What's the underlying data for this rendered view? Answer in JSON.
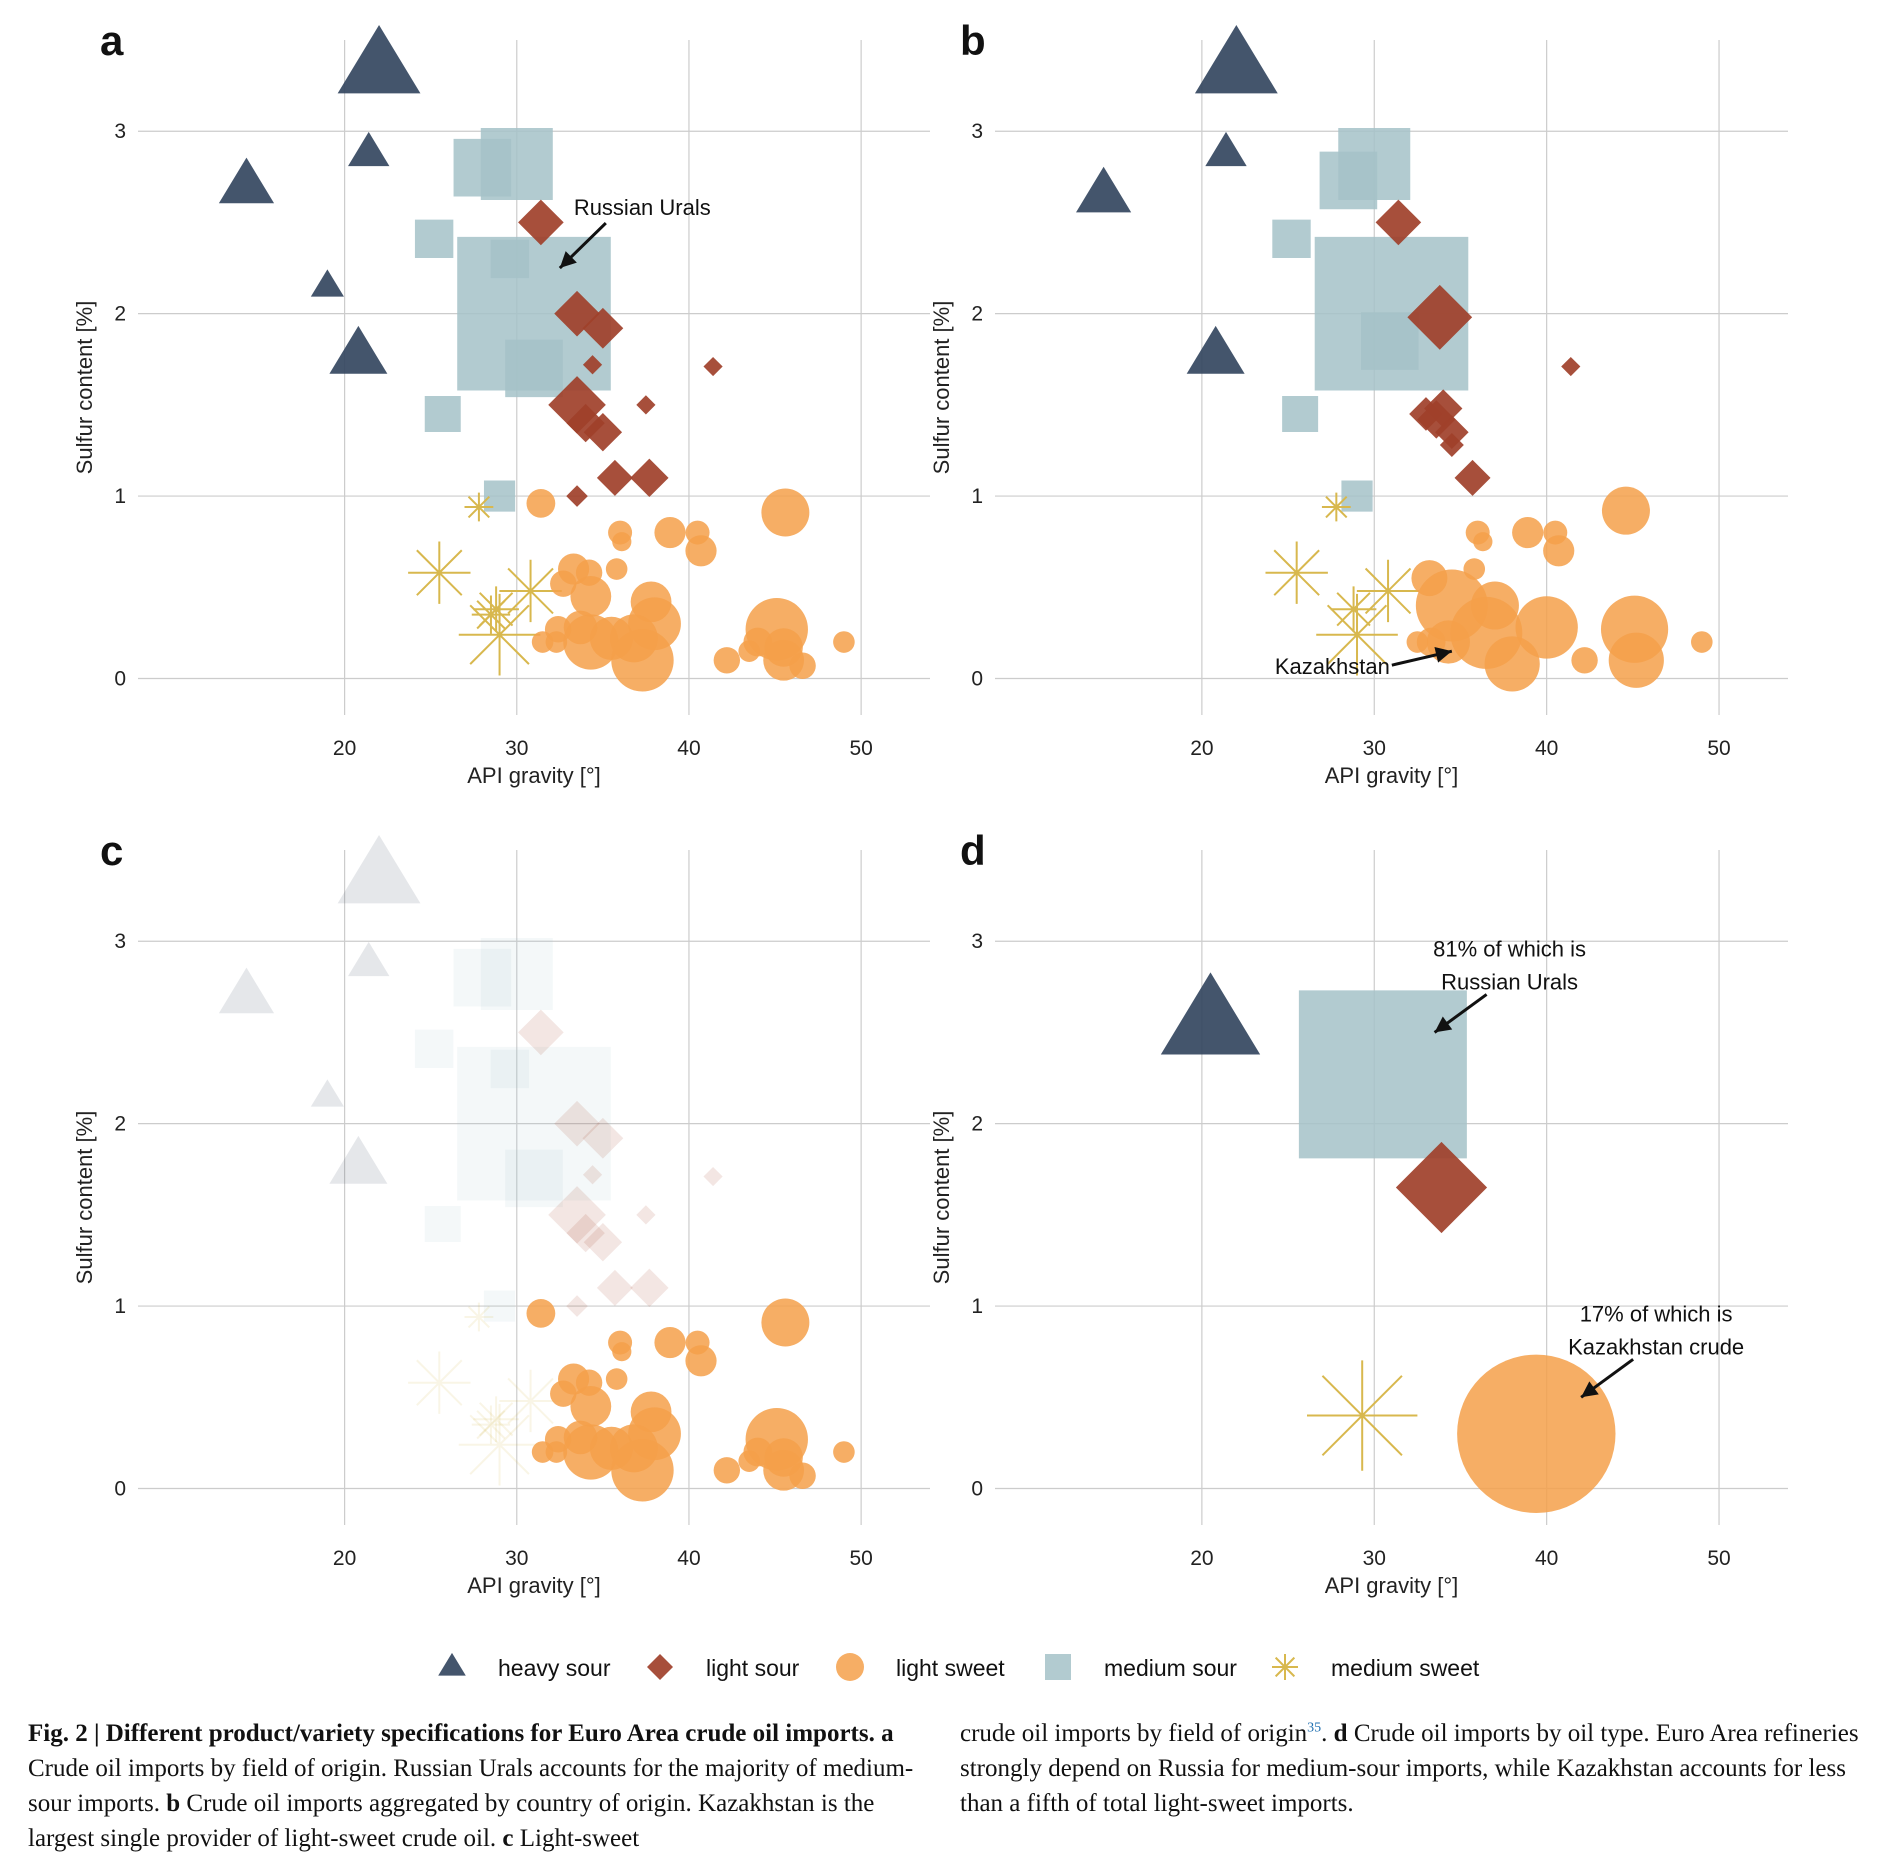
{
  "colors": {
    "heavy sour": "#34475f",
    "light sour": "#a0402a",
    "light sweet": "#f5a04a",
    "medium sour": "#a5c2c8",
    "medium sweet": "#d8b84e",
    "grid": "#cccccc"
  },
  "icons": {
    "heavy sour": "triangle-icon",
    "light sour": "diamond-icon",
    "light sweet": "circle-icon",
    "medium sour": "square-icon",
    "medium sweet": "asterisk-icon"
  },
  "legend": {
    "placement": "bottom",
    "items": [
      "heavy sour",
      "light sour",
      "light sweet",
      "medium sour",
      "medium sweet"
    ]
  },
  "chart_data": [
    {
      "panel": "a",
      "type": "scatter",
      "xlabel": "API gravity [°]",
      "ylabel": "Sulfur content [%]",
      "xlim": [
        8,
        54
      ],
      "ylim": [
        -0.2,
        3.5
      ],
      "xticks": [
        20,
        30,
        40,
        50
      ],
      "yticks": [
        0,
        1,
        2,
        3
      ],
      "grid": true,
      "annotations": [
        {
          "text": "Russian Urals",
          "x": 32.5,
          "y": 2.25
        }
      ],
      "points": [
        {
          "category": "heavy sour",
          "x": 22,
          "y": 3.35,
          "size": 30
        },
        {
          "category": "heavy sour",
          "x": 21.4,
          "y": 2.88,
          "size": 15
        },
        {
          "category": "heavy sour",
          "x": 14.3,
          "y": 2.7,
          "size": 20
        },
        {
          "category": "heavy sour",
          "x": 19,
          "y": 2.15,
          "size": 12
        },
        {
          "category": "heavy sour",
          "x": 20.8,
          "y": 1.77,
          "size": 21
        },
        {
          "category": "medium sour",
          "x": 28,
          "y": 2.8,
          "size": 24
        },
        {
          "category": "medium sour",
          "x": 30,
          "y": 2.82,
          "size": 30
        },
        {
          "category": "medium sour",
          "x": 25.2,
          "y": 2.41,
          "size": 16
        },
        {
          "category": "medium sour",
          "x": 29.6,
          "y": 2.3,
          "size": 16
        },
        {
          "category": "medium sour",
          "x": 31,
          "y": 2.0,
          "size": 64
        },
        {
          "category": "medium sour",
          "x": 31,
          "y": 1.7,
          "size": 24
        },
        {
          "category": "medium sour",
          "x": 25.7,
          "y": 1.45,
          "size": 15
        },
        {
          "category": "medium sour",
          "x": 29,
          "y": 1.0,
          "size": 13
        },
        {
          "category": "light sour",
          "x": 31.4,
          "y": 2.5,
          "size": 19
        },
        {
          "category": "light sour",
          "x": 33.5,
          "y": 2.0,
          "size": 19
        },
        {
          "category": "light sour",
          "x": 35,
          "y": 1.92,
          "size": 17
        },
        {
          "category": "light sour",
          "x": 34.4,
          "y": 1.72,
          "size": 8
        },
        {
          "category": "light sour",
          "x": 41.4,
          "y": 1.71,
          "size": 8
        },
        {
          "category": "light sour",
          "x": 33.5,
          "y": 1.5,
          "size": 24
        },
        {
          "category": "light sour",
          "x": 34,
          "y": 1.4,
          "size": 16
        },
        {
          "category": "light sour",
          "x": 37.5,
          "y": 1.5,
          "size": 8
        },
        {
          "category": "light sour",
          "x": 35,
          "y": 1.35,
          "size": 16
        },
        {
          "category": "light sour",
          "x": 35.7,
          "y": 1.1,
          "size": 15
        },
        {
          "category": "light sour",
          "x": 37.7,
          "y": 1.1,
          "size": 16
        },
        {
          "category": "light sour",
          "x": 33.5,
          "y": 1.0,
          "size": 9
        },
        {
          "category": "medium sweet",
          "x": 27.8,
          "y": 0.94,
          "size": 12
        },
        {
          "category": "medium sweet",
          "x": 25.5,
          "y": 0.58,
          "size": 26
        },
        {
          "category": "medium sweet",
          "x": 30.8,
          "y": 0.48,
          "size": 26
        },
        {
          "category": "medium sweet",
          "x": 28.8,
          "y": 0.38,
          "size": 19
        },
        {
          "category": "medium sweet",
          "x": 28.5,
          "y": 0.35,
          "size": 16
        },
        {
          "category": "medium sweet",
          "x": 29,
          "y": 0.24,
          "size": 34
        },
        {
          "category": "light sweet",
          "x": 31.4,
          "y": 0.96,
          "size": 12
        },
        {
          "category": "light sweet",
          "x": 45.6,
          "y": 0.91,
          "size": 20
        },
        {
          "category": "light sweet",
          "x": 36,
          "y": 0.8,
          "size": 10
        },
        {
          "category": "light sweet",
          "x": 38.9,
          "y": 0.8,
          "size": 13
        },
        {
          "category": "light sweet",
          "x": 36.1,
          "y": 0.75,
          "size": 8
        },
        {
          "category": "light sweet",
          "x": 40.5,
          "y": 0.8,
          "size": 10
        },
        {
          "category": "light sweet",
          "x": 40.7,
          "y": 0.7,
          "size": 13
        },
        {
          "category": "light sweet",
          "x": 33.3,
          "y": 0.6,
          "size": 13
        },
        {
          "category": "light sweet",
          "x": 34.2,
          "y": 0.58,
          "size": 11
        },
        {
          "category": "light sweet",
          "x": 35.8,
          "y": 0.6,
          "size": 9
        },
        {
          "category": "light sweet",
          "x": 32.7,
          "y": 0.52,
          "size": 11
        },
        {
          "category": "light sweet",
          "x": 34.3,
          "y": 0.45,
          "size": 17
        },
        {
          "category": "light sweet",
          "x": 37.8,
          "y": 0.42,
          "size": 17
        },
        {
          "category": "light sweet",
          "x": 38,
          "y": 0.3,
          "size": 22
        },
        {
          "category": "light sweet",
          "x": 36.8,
          "y": 0.22,
          "size": 20
        },
        {
          "category": "light sweet",
          "x": 35.5,
          "y": 0.22,
          "size": 18
        },
        {
          "category": "light sweet",
          "x": 34.3,
          "y": 0.2,
          "size": 23
        },
        {
          "category": "light sweet",
          "x": 33.7,
          "y": 0.28,
          "size": 14
        },
        {
          "category": "light sweet",
          "x": 32.4,
          "y": 0.27,
          "size": 11
        },
        {
          "category": "light sweet",
          "x": 31.5,
          "y": 0.2,
          "size": 9
        },
        {
          "category": "light sweet",
          "x": 32.3,
          "y": 0.2,
          "size": 9
        },
        {
          "category": "light sweet",
          "x": 37.3,
          "y": 0.1,
          "size": 26
        },
        {
          "category": "light sweet",
          "x": 45.1,
          "y": 0.27,
          "size": 26
        },
        {
          "category": "light sweet",
          "x": 44,
          "y": 0.2,
          "size": 12
        },
        {
          "category": "light sweet",
          "x": 43.5,
          "y": 0.15,
          "size": 9
        },
        {
          "category": "light sweet",
          "x": 45.5,
          "y": 0.17,
          "size": 16
        },
        {
          "category": "light sweet",
          "x": 45.5,
          "y": 0.1,
          "size": 17
        },
        {
          "category": "light sweet",
          "x": 42.2,
          "y": 0.1,
          "size": 11
        },
        {
          "category": "light sweet",
          "x": 46.6,
          "y": 0.07,
          "size": 11
        },
        {
          "category": "light sweet",
          "x": 49,
          "y": 0.2,
          "size": 9
        }
      ]
    },
    {
      "panel": "b",
      "type": "scatter",
      "xlabel": "API gravity [°]",
      "ylabel": "Sulfur content [%]",
      "xlim": [
        8,
        54
      ],
      "ylim": [
        -0.2,
        3.5
      ],
      "xticks": [
        20,
        30,
        40,
        50
      ],
      "yticks": [
        0,
        1,
        2,
        3
      ],
      "grid": true,
      "annotations": [
        {
          "text": "Kazakhstan",
          "x": 34.5,
          "y": 0.15
        }
      ],
      "points": [
        {
          "category": "heavy sour",
          "x": 22,
          "y": 3.35,
          "size": 30
        },
        {
          "category": "heavy sour",
          "x": 21.4,
          "y": 2.88,
          "size": 15
        },
        {
          "category": "heavy sour",
          "x": 14.3,
          "y": 2.65,
          "size": 20
        },
        {
          "category": "heavy sour",
          "x": 20.8,
          "y": 1.77,
          "size": 21
        },
        {
          "category": "medium sour",
          "x": 30,
          "y": 2.82,
          "size": 30
        },
        {
          "category": "medium sour",
          "x": 28.5,
          "y": 2.73,
          "size": 24
        },
        {
          "category": "medium sour",
          "x": 25.2,
          "y": 2.41,
          "size": 16
        },
        {
          "category": "medium sour",
          "x": 31,
          "y": 2.0,
          "size": 64
        },
        {
          "category": "medium sour",
          "x": 30.9,
          "y": 1.85,
          "size": 24
        },
        {
          "category": "medium sour",
          "x": 25.7,
          "y": 1.45,
          "size": 15
        },
        {
          "category": "medium sour",
          "x": 29,
          "y": 1.0,
          "size": 13
        },
        {
          "category": "light sour",
          "x": 31.4,
          "y": 2.5,
          "size": 19
        },
        {
          "category": "light sour",
          "x": 33.8,
          "y": 1.98,
          "size": 27
        },
        {
          "category": "light sour",
          "x": 41.4,
          "y": 1.71,
          "size": 8
        },
        {
          "category": "light sour",
          "x": 34,
          "y": 1.48,
          "size": 16
        },
        {
          "category": "light sour",
          "x": 33,
          "y": 1.45,
          "size": 14
        },
        {
          "category": "light sour",
          "x": 33.6,
          "y": 1.42,
          "size": 16
        },
        {
          "category": "light sour",
          "x": 34.5,
          "y": 1.35,
          "size": 14
        },
        {
          "category": "light sour",
          "x": 34.5,
          "y": 1.28,
          "size": 10
        },
        {
          "category": "light sour",
          "x": 35.7,
          "y": 1.1,
          "size": 15
        },
        {
          "category": "medium sweet",
          "x": 27.8,
          "y": 0.94,
          "size": 12
        },
        {
          "category": "medium sweet",
          "x": 25.5,
          "y": 0.58,
          "size": 26
        },
        {
          "category": "medium sweet",
          "x": 30.8,
          "y": 0.48,
          "size": 26
        },
        {
          "category": "medium sweet",
          "x": 28.8,
          "y": 0.38,
          "size": 19
        },
        {
          "category": "medium sweet",
          "x": 29,
          "y": 0.24,
          "size": 34
        },
        {
          "category": "light sweet",
          "x": 44.6,
          "y": 0.92,
          "size": 20
        },
        {
          "category": "light sweet",
          "x": 36,
          "y": 0.8,
          "size": 10
        },
        {
          "category": "light sweet",
          "x": 36.3,
          "y": 0.75,
          "size": 8
        },
        {
          "category": "light sweet",
          "x": 38.9,
          "y": 0.8,
          "size": 13
        },
        {
          "category": "light sweet",
          "x": 40.5,
          "y": 0.8,
          "size": 10
        },
        {
          "category": "light sweet",
          "x": 40.7,
          "y": 0.7,
          "size": 13
        },
        {
          "category": "light sweet",
          "x": 35.8,
          "y": 0.6,
          "size": 9
        },
        {
          "category": "light sweet",
          "x": 33.2,
          "y": 0.55,
          "size": 15
        },
        {
          "category": "light sweet",
          "x": 34.5,
          "y": 0.4,
          "size": 30
        },
        {
          "category": "light sweet",
          "x": 37,
          "y": 0.4,
          "size": 20
        },
        {
          "category": "light sweet",
          "x": 40,
          "y": 0.28,
          "size": 26
        },
        {
          "category": "light sweet",
          "x": 36.5,
          "y": 0.25,
          "size": 30
        },
        {
          "category": "light sweet",
          "x": 34.3,
          "y": 0.2,
          "size": 18
        },
        {
          "category": "light sweet",
          "x": 33.3,
          "y": 0.2,
          "size": 12
        },
        {
          "category": "light sweet",
          "x": 32.5,
          "y": 0.2,
          "size": 9
        },
        {
          "category": "light sweet",
          "x": 38,
          "y": 0.08,
          "size": 23
        },
        {
          "category": "light sweet",
          "x": 45.1,
          "y": 0.27,
          "size": 28
        },
        {
          "category": "light sweet",
          "x": 45.2,
          "y": 0.1,
          "size": 23
        },
        {
          "category": "light sweet",
          "x": 42.2,
          "y": 0.1,
          "size": 11
        },
        {
          "category": "light sweet",
          "x": 49,
          "y": 0.2,
          "size": 9
        }
      ]
    },
    {
      "panel": "c",
      "type": "scatter",
      "xlabel": "API gravity [°]",
      "ylabel": "Sulfur content [%]",
      "xlim": [
        8,
        54
      ],
      "ylim": [
        -0.2,
        3.5
      ],
      "xticks": [
        20,
        30,
        40,
        50
      ],
      "yticks": [
        0,
        1,
        2,
        3
      ],
      "grid": true,
      "highlight": "light sweet",
      "annotations": [],
      "points_from_panel": "a"
    },
    {
      "panel": "d",
      "type": "scatter",
      "xlabel": "API gravity [°]",
      "ylabel": "Sulfur content [%]",
      "xlim": [
        8,
        54
      ],
      "ylim": [
        -0.2,
        3.5
      ],
      "xticks": [
        20,
        30,
        40,
        50
      ],
      "yticks": [
        0,
        1,
        2,
        3
      ],
      "grid": true,
      "annotations": [
        {
          "text": "81% of which is",
          "text2": "Russian Urals",
          "x": 33.5,
          "y": 2.5
        },
        {
          "text": "17% of which is",
          "text2": "Kazakhstan crude",
          "x": 42,
          "y": 0.5
        }
      ],
      "points": [
        {
          "category": "heavy sour",
          "x": 20.5,
          "y": 2.55,
          "size": 36
        },
        {
          "category": "medium sour",
          "x": 30.5,
          "y": 2.27,
          "size": 70
        },
        {
          "category": "light sour",
          "x": 33.9,
          "y": 1.65,
          "size": 38
        },
        {
          "category": "medium sweet",
          "x": 29.3,
          "y": 0.4,
          "size": 46
        },
        {
          "category": "light sweet",
          "x": 39.4,
          "y": 0.3,
          "size": 66
        }
      ]
    }
  ],
  "caption": {
    "fig_label": "Fig. 2",
    "title": "Different product/variety specifications for Euro Area crude oil imports.",
    "part_a_label": "a",
    "part_a": "Crude oil imports by field of origin. Russian Urals accounts for the majority of medium-sour imports.",
    "part_b_label": "b",
    "part_b": "Crude oil imports aggregated by country of origin. Kazakhstan is the largest single provider of light-sweet crude oil.",
    "part_c_label": "c",
    "part_c_start": "Light-sweet",
    "part_c_end": "crude oil imports by field of origin",
    "ref": "35",
    "part_d_label": "d",
    "part_d": "Crude oil imports by oil type. Euro Area refineries strongly depend on Russia for medium-sour imports, while Kazakhstan accounts for less than a fifth of total light-sweet imports."
  }
}
